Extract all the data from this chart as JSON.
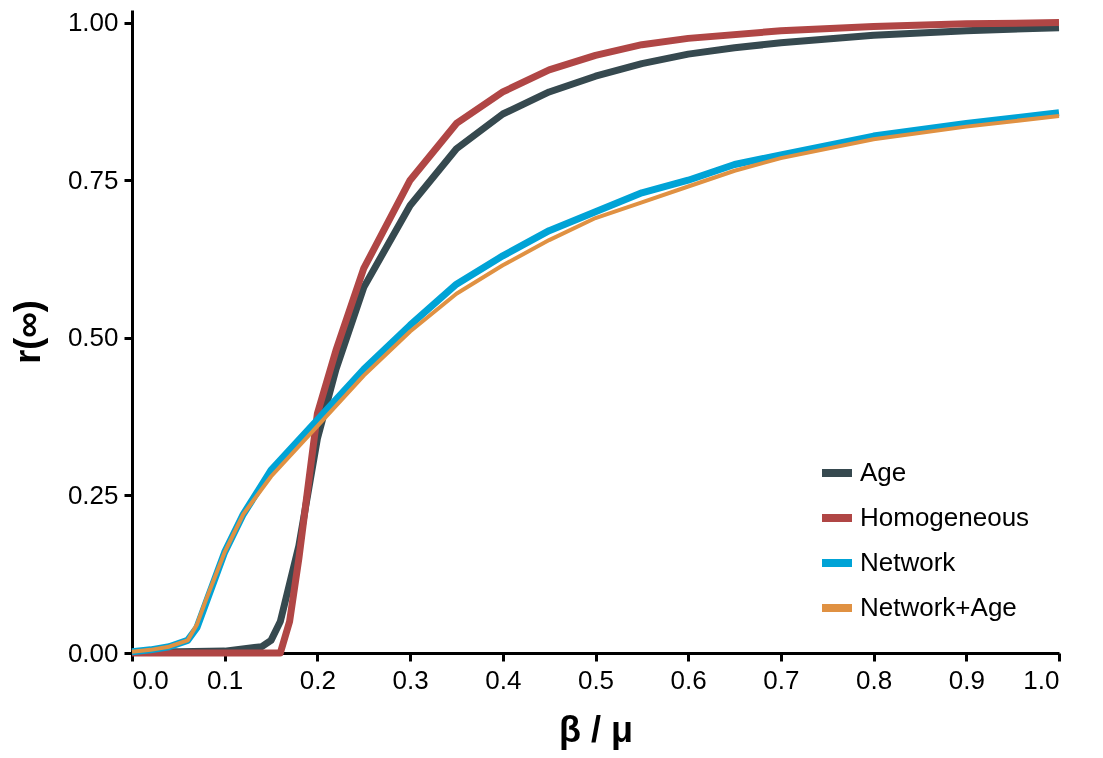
{
  "chart_data": {
    "type": "line",
    "xlabel": "β / μ",
    "ylabel": "r(∞)",
    "xlim": [
      0,
      1
    ],
    "ylim": [
      0,
      1.02
    ],
    "xticks": [
      {
        "value": 0,
        "label": "0.0"
      },
      0.1,
      0.2,
      0.3,
      0.4,
      0.5,
      0.6,
      0.7,
      0.8,
      0.9,
      {
        "value": 1,
        "label": "1.0"
      }
    ],
    "yticks": [
      {
        "value": 0,
        "label": "0.00"
      },
      0.25,
      {
        "value": 0.5,
        "label": "0.50"
      },
      0.75,
      {
        "value": 1,
        "label": "1.00"
      }
    ],
    "grid": false,
    "legend": "bottom right",
    "line_style": "solid",
    "marker": "none",
    "series": [
      {
        "name": "Age",
        "color": "#36494f",
        "x": [
          0,
          0.05,
          0.1,
          0.14,
          0.15,
          0.16,
          0.18,
          0.2,
          0.22,
          0.25,
          0.3,
          0.35,
          0.4,
          0.45,
          0.5,
          0.55,
          0.6,
          0.65,
          0.7,
          0.8,
          0.9,
          1.0
        ],
        "values": [
          0.002,
          0.002,
          0.003,
          0.01,
          0.02,
          0.05,
          0.17,
          0.34,
          0.45,
          0.58,
          0.71,
          0.8,
          0.855,
          0.89,
          0.915,
          0.935,
          0.95,
          0.96,
          0.968,
          0.98,
          0.987,
          0.992
        ]
      },
      {
        "name": "Homogeneous",
        "color": "#b04645",
        "x": [
          0,
          0.1,
          0.16,
          0.17,
          0.18,
          0.2,
          0.22,
          0.25,
          0.3,
          0.35,
          0.4,
          0.45,
          0.5,
          0.55,
          0.6,
          0.7,
          0.8,
          0.9,
          1.0
        ],
        "values": [
          0,
          0,
          0,
          0.05,
          0.15,
          0.38,
          0.48,
          0.61,
          0.75,
          0.84,
          0.89,
          0.925,
          0.948,
          0.965,
          0.975,
          0.987,
          0.994,
          0.998,
          1.0
        ]
      },
      {
        "name": "Network",
        "color": "#00a3d6",
        "x": [
          0,
          0.02,
          0.04,
          0.06,
          0.07,
          0.08,
          0.1,
          0.12,
          0.15,
          0.2,
          0.25,
          0.3,
          0.35,
          0.4,
          0.45,
          0.5,
          0.55,
          0.6,
          0.65,
          0.7,
          0.8,
          0.9,
          1.0
        ],
        "values": [
          0.002,
          0.005,
          0.01,
          0.02,
          0.04,
          0.08,
          0.16,
          0.22,
          0.29,
          0.37,
          0.45,
          0.52,
          0.585,
          0.63,
          0.67,
          0.7,
          0.73,
          0.75,
          0.775,
          0.79,
          0.82,
          0.84,
          0.857
        ]
      },
      {
        "name": "Network+Age",
        "color": "#e09142",
        "x": [
          0,
          0.02,
          0.04,
          0.06,
          0.07,
          0.08,
          0.1,
          0.12,
          0.15,
          0.2,
          0.25,
          0.3,
          0.35,
          0.4,
          0.45,
          0.5,
          0.55,
          0.6,
          0.65,
          0.7,
          0.8,
          0.9,
          1.0
        ],
        "values": [
          0.002,
          0.005,
          0.01,
          0.02,
          0.045,
          0.085,
          0.16,
          0.22,
          0.28,
          0.36,
          0.44,
          0.51,
          0.57,
          0.615,
          0.655,
          0.69,
          0.715,
          0.74,
          0.765,
          0.785,
          0.815,
          0.835,
          0.852
        ]
      }
    ]
  }
}
